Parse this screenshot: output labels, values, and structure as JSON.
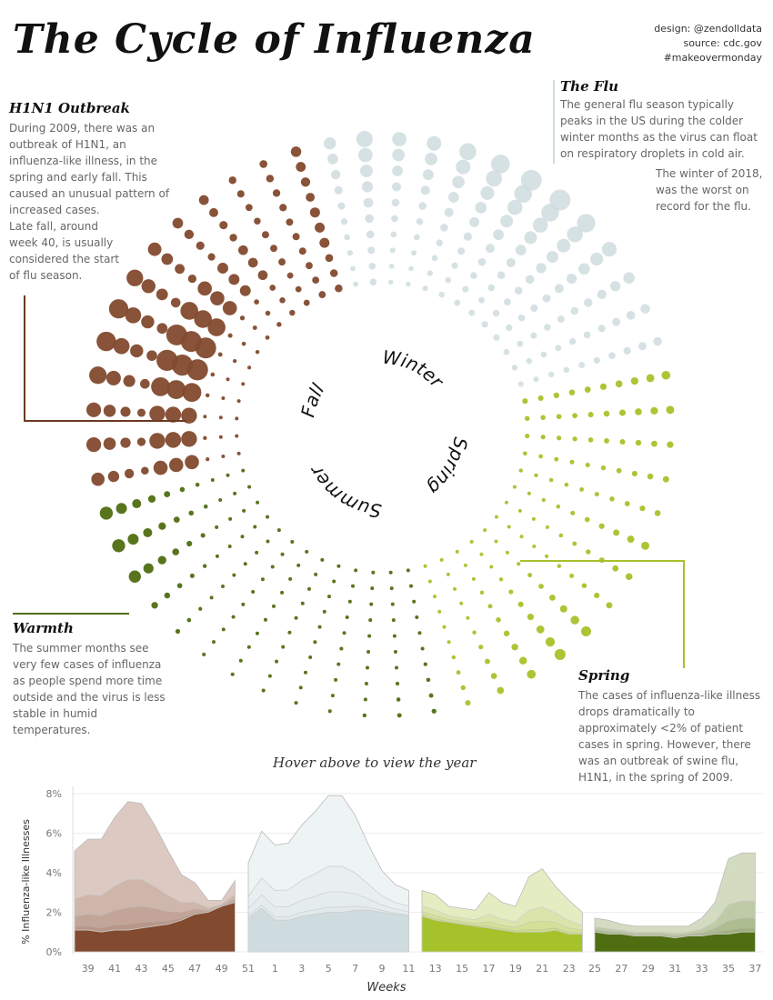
{
  "header": {
    "title": "The Cycle of Influenza",
    "credits": [
      "design: @zendolldata",
      "source: cdc.gov",
      "#makeovermonday"
    ]
  },
  "annotations": {
    "h1n1": {
      "title": "H1N1 Outbreak",
      "text": "During 2009, there was an outbreak of H1N1, an influenza-like illness, in the spring and early fall. This caused an unusual pattern of increased cases.",
      "text2": "Late fall, around week 40, is usually considered the start of flu season."
    },
    "flu": {
      "title": "The Flu",
      "text": "The general flu season typically peaks in the US during the colder winter months as the virus can float on respiratory droplets in cold air.",
      "text2": "The winter of 2018, was the worst on record for the flu."
    },
    "warmth": {
      "title": "Warmth",
      "text": "The summer months see very few cases of influenza as people spend more time outside and the virus is less stable in humid temperatures."
    },
    "spring": {
      "title": "Spring",
      "text": "The cases of influenza-like illness drops dramatically to approximately <2% of patient cases in spring. However, there was an outbreak of swine flu, H1N1, in the spring of 2009."
    }
  },
  "hint": "Hover above to view the year",
  "chart_data": [
    {
      "type": "scatter",
      "name": "radial-week-dots",
      "season_labels": [
        "Winter",
        "Spring",
        "Summer",
        "Fall"
      ]
    },
    {
      "type": "area",
      "ylabel": "% Influenza-like Illnesses",
      "xlabel": "Weeks",
      "ylim": [
        0,
        8
      ],
      "yticks": [
        "0%",
        "2%",
        "4%",
        "6%",
        "8%"
      ],
      "xticks": [
        "39",
        "41",
        "43",
        "45",
        "47",
        "49",
        "51",
        "1",
        "3",
        "5",
        "7",
        "9",
        "11",
        "13",
        "15",
        "17",
        "19",
        "21",
        "23",
        "25",
        "27",
        "29",
        "31",
        "33",
        "35",
        "37"
      ],
      "series": [
        {
          "name": "Fall",
          "weeks": [
            38,
            39,
            40,
            41,
            42,
            43,
            44,
            45,
            46,
            47,
            48,
            49,
            50
          ],
          "max": [
            5.1,
            5.7,
            5.7,
            6.8,
            7.6,
            7.5,
            6.4,
            5.1,
            3.9,
            3.5,
            2.6,
            2.6,
            3.6
          ],
          "low": [
            1.1,
            1.1,
            1.0,
            1.1,
            1.1,
            1.2,
            1.3,
            1.4,
            1.6,
            1.9,
            2.0,
            2.3,
            2.5
          ],
          "color": "#824a2e",
          "light": "#dcc9c1"
        },
        {
          "name": "Winter",
          "weeks": [
            51,
            52,
            1,
            2,
            3,
            4,
            5,
            6,
            7,
            8,
            9,
            10,
            11
          ],
          "max": [
            4.5,
            6.1,
            5.4,
            5.5,
            6.4,
            7.1,
            7.9,
            7.9,
            6.9,
            5.4,
            4.1,
            3.4,
            3.1
          ],
          "low": [
            1.7,
            2.2,
            1.6,
            1.6,
            1.8,
            1.9,
            2.0,
            2.0,
            2.1,
            2.1,
            2.0,
            1.9,
            1.8
          ],
          "color": "#cfdcdf",
          "light": "#eef3f4"
        },
        {
          "name": "Spring",
          "weeks": [
            12,
            13,
            14,
            15,
            16,
            17,
            18,
            19,
            20,
            21,
            22,
            23,
            24
          ],
          "max": [
            3.1,
            2.9,
            2.3,
            2.2,
            2.1,
            3.0,
            2.5,
            2.3,
            3.8,
            4.2,
            3.3,
            2.6,
            2.0
          ],
          "low": [
            1.8,
            1.6,
            1.5,
            1.4,
            1.3,
            1.2,
            1.1,
            1.0,
            1.0,
            1.0,
            1.1,
            0.9,
            0.9
          ],
          "color": "#a6c22a",
          "light": "#e4ecc2"
        },
        {
          "name": "Summer",
          "weeks": [
            25,
            26,
            27,
            28,
            29,
            30,
            31,
            32,
            33,
            34,
            35,
            36,
            37
          ],
          "max": [
            1.7,
            1.6,
            1.4,
            1.3,
            1.3,
            1.3,
            1.3,
            1.3,
            1.7,
            2.5,
            4.7,
            5.0,
            5.0
          ],
          "low": [
            1.0,
            0.9,
            0.9,
            0.8,
            0.8,
            0.8,
            0.7,
            0.8,
            0.8,
            0.9,
            0.9,
            1.0,
            1.0
          ],
          "color": "#4f6e12",
          "light": "#d3dcc1"
        }
      ]
    }
  ]
}
